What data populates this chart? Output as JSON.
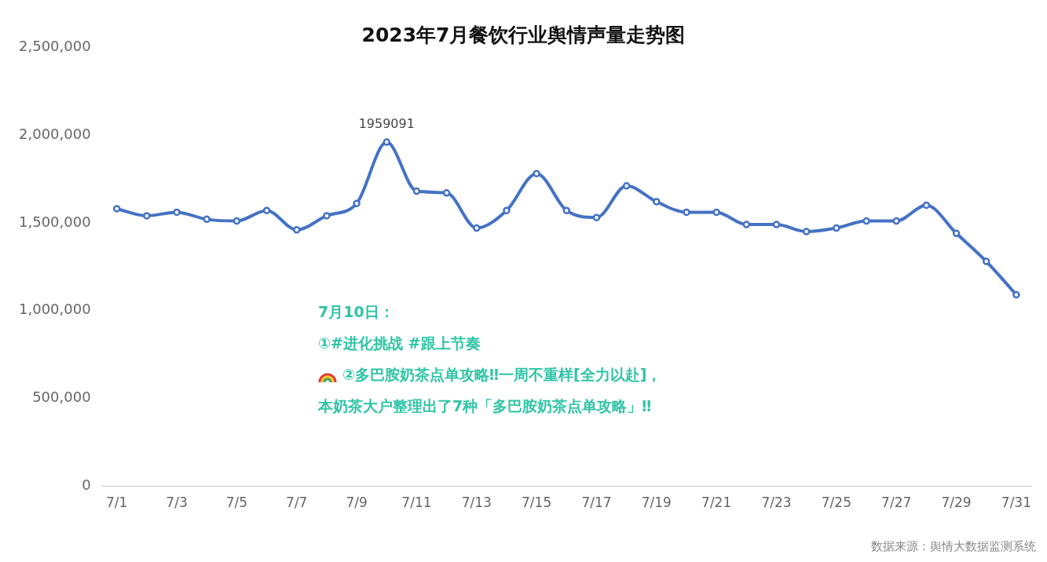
{
  "chart_data": {
    "type": "line",
    "title": "2023年7月餐饮行业舆情声量走势图",
    "categories": [
      "7/1",
      null,
      "7/3",
      null,
      "7/5",
      null,
      "7/7",
      null,
      "7/9",
      null,
      "7/11",
      null,
      "7/13",
      null,
      "7/15",
      null,
      "7/17",
      null,
      "7/19",
      null,
      "7/21",
      null,
      "7/23",
      null,
      "7/25",
      null,
      "7/27",
      null,
      "7/29",
      null,
      "7/31"
    ],
    "series": [
      {
        "color": "#4472c4",
        "values": [
          1580000,
          1540000,
          1560000,
          1520000,
          1510000,
          1570000,
          1460000,
          1540000,
          1610000,
          1959091,
          1680000,
          1670000,
          1470000,
          1570000,
          1780000,
          1570000,
          1530000,
          1710000,
          1620000,
          1560000,
          1560000,
          1490000,
          1490000,
          1450000,
          1470000,
          1510000,
          1510000,
          1600000,
          1440000,
          1280000,
          1090000
        ],
        "value_labels": [
          null,
          null,
          null,
          null,
          null,
          null,
          null,
          null,
          null,
          "1959091",
          null,
          null,
          null,
          null,
          null,
          null,
          null,
          null,
          null,
          null,
          null,
          null,
          null,
          null,
          null,
          null,
          null,
          null,
          null,
          null,
          null
        ]
      }
    ],
    "ylim": [
      0,
      2500000
    ],
    "yticks": [
      {
        "value": 0,
        "label": "0"
      },
      {
        "value": 500000,
        "label": "500,000"
      },
      {
        "value": 1000000,
        "label": "1,000,000"
      },
      {
        "value": 1500000,
        "label": "1,500,000"
      },
      {
        "value": 2000000,
        "label": "2,000,000"
      },
      {
        "value": 2500000,
        "label": "2,500,000"
      }
    ],
    "grid": false,
    "legend": false,
    "marker": "circle",
    "line_style": "solid",
    "annotations": [
      "7月10日：",
      "①#进化挑战 #跟上节奏",
      "②多巴胺奶茶点单攻略‼一周不重样[全力以赴]，",
      "本奶茶大户整理出了7种「多巴胺奶茶点单攻略」‼",
      "数据来源：舆情大数据监测系统"
    ]
  }
}
